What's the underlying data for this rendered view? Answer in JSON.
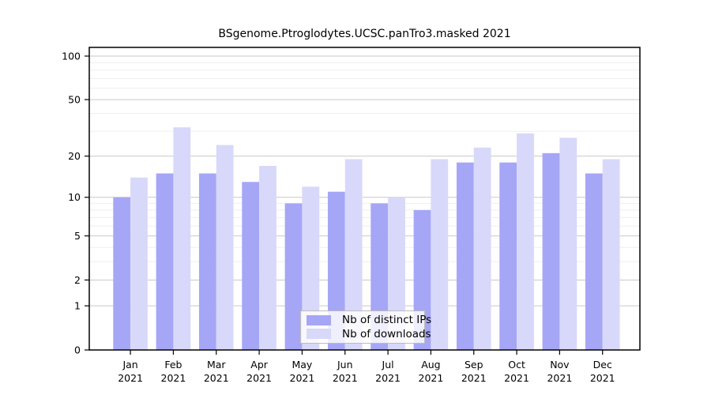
{
  "chart_data": {
    "type": "bar",
    "title": "BSgenome.Ptroglodytes.UCSC.panTro3.masked 2021",
    "categories": [
      "Jan",
      "Feb",
      "Mar",
      "Apr",
      "May",
      "Jun",
      "Jul",
      "Aug",
      "Sep",
      "Oct",
      "Nov",
      "Dec"
    ],
    "year_label": "2021",
    "series": [
      {
        "name": "Nb of distinct IPs",
        "color": "#a6a6f7",
        "values": [
          10,
          15,
          15,
          13,
          9,
          11,
          9,
          8,
          18,
          18,
          21,
          15
        ]
      },
      {
        "name": "Nb of downloads",
        "color": "#d8d8fa",
        "values": [
          14,
          32,
          24,
          17,
          12,
          19,
          10,
          19,
          23,
          29,
          27,
          19
        ]
      }
    ],
    "yaxis": {
      "scale": "log10(1+x)",
      "ylim": [
        0,
        100
      ],
      "ticks": [
        0,
        1,
        2,
        5,
        10,
        20,
        50,
        100
      ],
      "minor_gridlines": [
        3,
        4,
        6,
        7,
        8,
        9,
        30,
        40,
        60,
        70,
        80,
        90
      ]
    },
    "xlabel": "",
    "ylabel": "",
    "legend": {
      "position": "inside-bottom-center",
      "entries": [
        "Nb of distinct IPs",
        "Nb of downloads"
      ]
    },
    "grid": "on"
  },
  "colors": {
    "major_grid": "#c9c9c9",
    "minor_grid": "#efefef",
    "axis": "#000000",
    "text": "#000000"
  }
}
